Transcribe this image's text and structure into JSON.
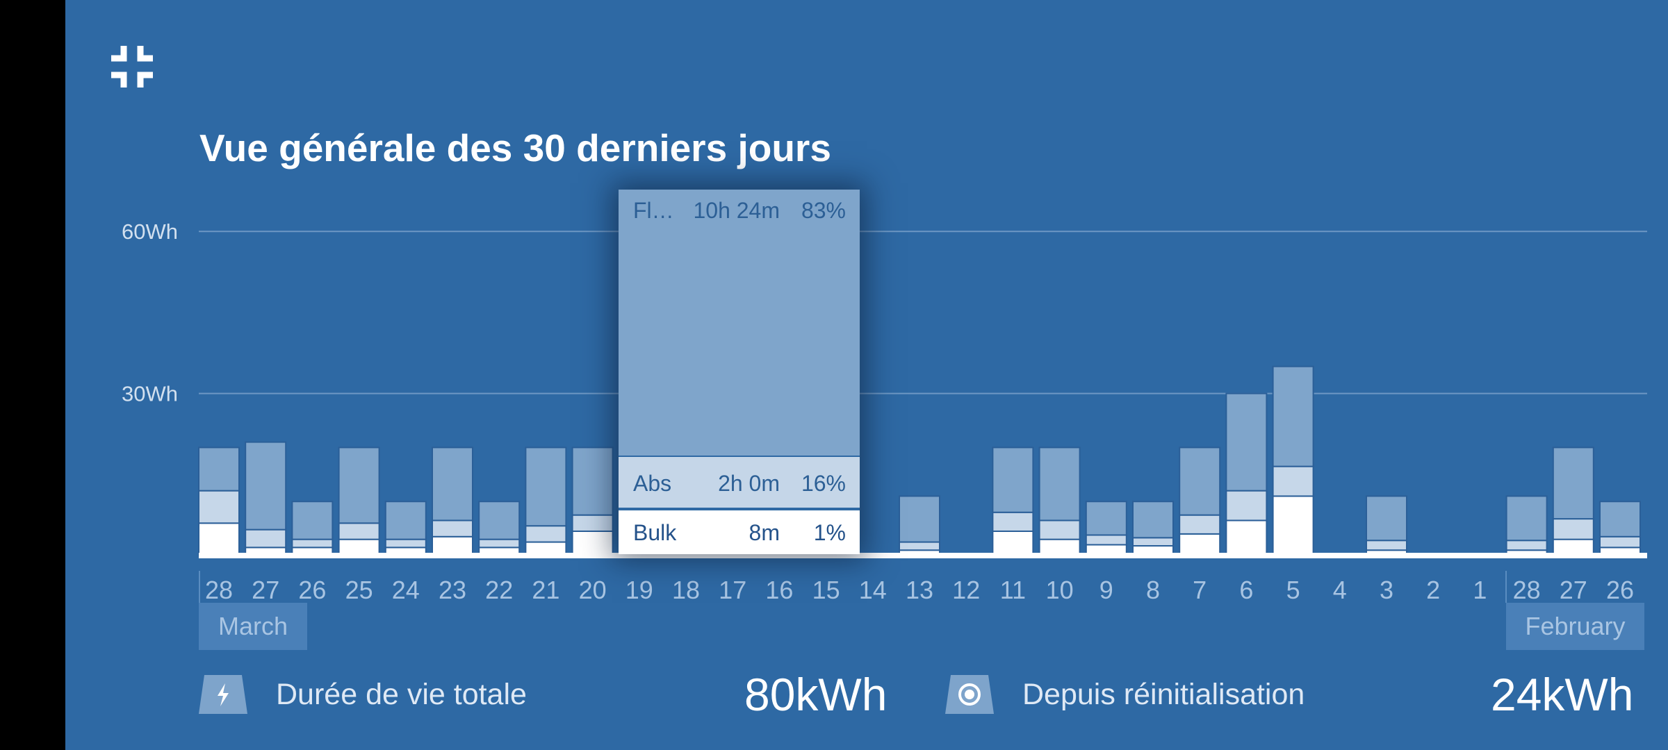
{
  "header": {
    "title": "Vue générale des 30 derniers jours"
  },
  "chart_data": {
    "type": "bar",
    "stacked": true,
    "unit": "Wh",
    "y_ticks": [
      "60Wh",
      "30Wh"
    ],
    "ylim": [
      0,
      60
    ],
    "grid": true,
    "categories": [
      "28",
      "27",
      "26",
      "25",
      "24",
      "23",
      "22",
      "21",
      "20",
      "19",
      "18",
      "17",
      "16",
      "15",
      "14",
      "13",
      "12",
      "11",
      "10",
      "9",
      "8",
      "7",
      "6",
      "5",
      "4",
      "3",
      "2",
      "1",
      "28",
      "27",
      "26"
    ],
    "months": [
      "March",
      "February"
    ],
    "series": [
      {
        "name": "Bulk",
        "color": "#ffffff",
        "values": [
          6,
          1.5,
          1.5,
          3,
          1.5,
          3.5,
          1.5,
          2.5,
          4.5,
          0,
          0,
          0,
          0,
          0,
          0,
          1,
          0,
          4.5,
          3,
          2,
          1.8,
          4,
          6.5,
          11,
          0,
          1,
          0,
          0,
          1,
          3,
          1.5
        ]
      },
      {
        "name": "Abs",
        "color": "#c6d7e9",
        "values": [
          6,
          3.3,
          1.5,
          3,
          1.5,
          3,
          1.5,
          3,
          3,
          0,
          0,
          0,
          0,
          0,
          0,
          1.5,
          0,
          3.5,
          3.5,
          1.8,
          1.5,
          3.5,
          5.5,
          5.5,
          0,
          1.8,
          0,
          0,
          1.8,
          3.8,
          2
        ]
      },
      {
        "name": "Float",
        "color": "#7fa5cb",
        "values": [
          8,
          16.2,
          7,
          14,
          7,
          13.5,
          7,
          14.5,
          12.5,
          0,
          0,
          0,
          0,
          0,
          0,
          8.5,
          0,
          12,
          13.5,
          6.2,
          6.7,
          12.5,
          18,
          18.5,
          0,
          8.2,
          0,
          0,
          8.2,
          13.2,
          6.5
        ]
      }
    ],
    "tooltip": {
      "rows": [
        {
          "name": "Fl…",
          "time": "10h 24m",
          "percent": "83%"
        },
        {
          "name": "Abs",
          "time": "2h 0m",
          "percent": "16%"
        },
        {
          "name": "Bulk",
          "time": "8m",
          "percent": "1%"
        }
      ]
    }
  },
  "stats": {
    "lifetime": {
      "label": "Durée de vie totale",
      "value": "80kWh",
      "icon": "bolt-icon"
    },
    "since_reset": {
      "label": "Depuis réinitialisation",
      "value": "24kWh",
      "icon": "target-icon"
    }
  },
  "colors": {
    "background": "#2e69a4",
    "bulk": "#ffffff",
    "absorption": "#c6d7e9",
    "float": "#7fa5cb"
  }
}
